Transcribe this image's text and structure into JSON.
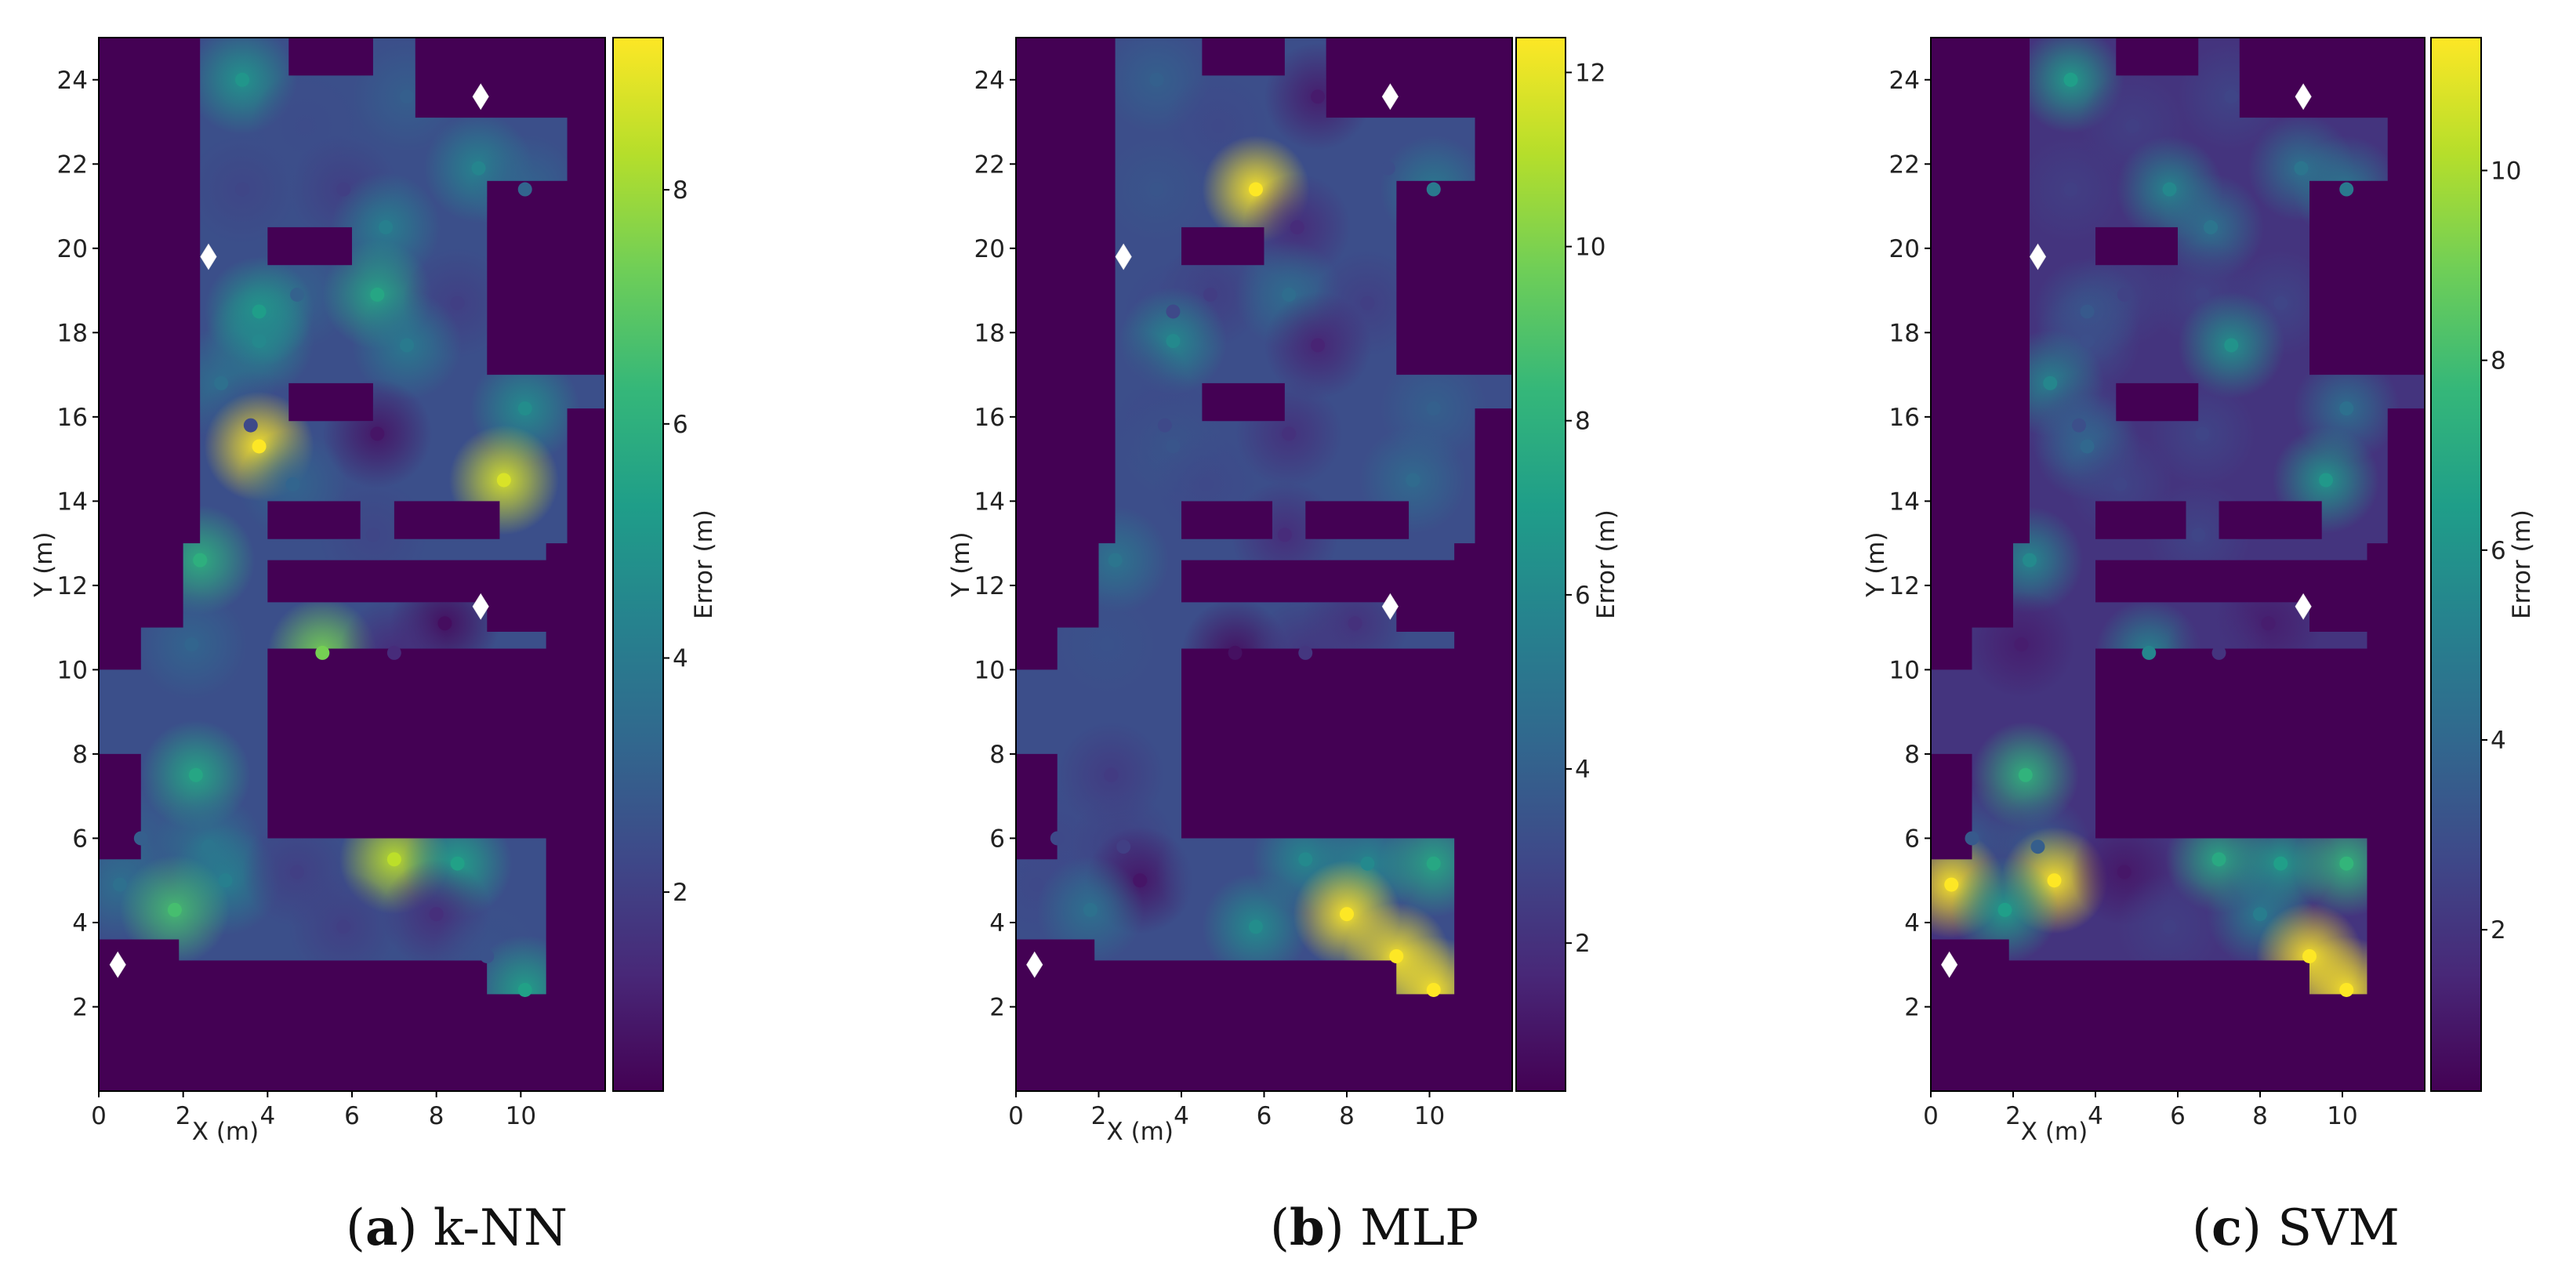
{
  "colors": {
    "wall": "#440154",
    "viridis": [
      "#440154",
      "#482878",
      "#3e4989",
      "#31688e",
      "#26828e",
      "#1f9e89",
      "#35b779",
      "#6ece58",
      "#b5de2b",
      "#fde725"
    ],
    "marker": "#ffffff"
  },
  "chart_data": [
    {
      "type": "heatmap",
      "name": "knn",
      "caption_letter": "(a)",
      "caption_text": " k-NN",
      "xlabel": "X (m)",
      "ylabel": "Y (m)",
      "colorbar_label": "Error   (m)",
      "xlim": [
        0,
        12
      ],
      "ylim": [
        0,
        25
      ],
      "xticks": [
        0,
        2,
        4,
        6,
        8,
        10
      ],
      "yticks": [
        2,
        4,
        6,
        8,
        10,
        12,
        14,
        16,
        18,
        20,
        22,
        24
      ],
      "clim": [
        0.3,
        9.3
      ],
      "cticks": [
        2,
        4,
        6,
        8
      ],
      "background_error": 2.5,
      "access_points": [
        [
          0.45,
          3.0
        ],
        [
          2.6,
          19.8
        ],
        [
          9.05,
          23.6
        ],
        [
          9.05,
          11.5
        ]
      ],
      "points": [
        [
          3.4,
          24.0,
          5.0
        ],
        [
          4.9,
          22.9,
          2.4
        ],
        [
          7.3,
          23.6,
          3.0
        ],
        [
          9.0,
          21.9,
          4.4
        ],
        [
          10.1,
          21.4,
          3.2
        ],
        [
          3.4,
          21.4,
          2.2
        ],
        [
          5.8,
          21.4,
          2.0
        ],
        [
          6.8,
          20.5,
          4.2
        ],
        [
          4.7,
          18.9,
          3.1
        ],
        [
          3.8,
          18.5,
          5.3
        ],
        [
          6.6,
          18.9,
          5.6
        ],
        [
          8.5,
          18.7,
          2.0
        ],
        [
          3.8,
          17.8,
          4.5
        ],
        [
          7.3,
          17.7,
          4.0
        ],
        [
          2.9,
          16.8,
          3.6
        ],
        [
          3.6,
          15.8,
          2.3
        ],
        [
          3.8,
          15.3,
          9.3
        ],
        [
          6.6,
          15.6,
          0.8
        ],
        [
          4.6,
          14.4,
          3.2
        ],
        [
          10.1,
          16.2,
          4.7
        ],
        [
          9.6,
          14.5,
          8.8
        ],
        [
          6.5,
          13.2,
          2.2
        ],
        [
          2.4,
          12.6,
          6.0
        ],
        [
          8.2,
          11.1,
          0.6
        ],
        [
          2.2,
          10.6,
          3.2
        ],
        [
          5.3,
          10.4,
          7.4
        ],
        [
          7.0,
          10.4,
          1.4
        ],
        [
          1.0,
          6.0,
          3.0
        ],
        [
          0.5,
          4.9,
          3.6
        ],
        [
          2.3,
          7.5,
          5.6
        ],
        [
          2.6,
          5.8,
          3.8
        ],
        [
          3.0,
          5.0,
          4.2
        ],
        [
          1.8,
          4.3,
          6.6
        ],
        [
          4.7,
          5.2,
          2.0
        ],
        [
          7.0,
          5.5,
          8.4
        ],
        [
          8.5,
          5.4,
          5.4
        ],
        [
          5.8,
          3.9,
          2.0
        ],
        [
          8.0,
          4.2,
          1.5
        ],
        [
          9.2,
          3.2,
          2.6
        ],
        [
          10.1,
          2.4,
          5.4
        ]
      ]
    },
    {
      "type": "heatmap",
      "name": "mlp",
      "caption_letter": "(b)",
      "caption_text": " MLP",
      "xlabel": "X (m)",
      "ylabel": "Y (m)",
      "colorbar_label": "Error   (m)",
      "xlim": [
        0,
        12
      ],
      "ylim": [
        0,
        25
      ],
      "xticks": [
        0,
        2,
        4,
        6,
        8,
        10
      ],
      "yticks": [
        2,
        4,
        6,
        8,
        10,
        12,
        14,
        16,
        18,
        20,
        22,
        24
      ],
      "clim": [
        0.3,
        12.4
      ],
      "cticks": [
        2,
        4,
        6,
        8,
        10,
        12
      ],
      "background_error": 3.2,
      "access_points": [
        [
          0.45,
          3.0
        ],
        [
          2.6,
          19.8
        ],
        [
          9.05,
          23.6
        ],
        [
          9.05,
          11.5
        ]
      ],
      "points": [
        [
          3.4,
          24.0,
          4.0
        ],
        [
          4.9,
          22.9,
          3.0
        ],
        [
          7.3,
          23.6,
          1.2
        ],
        [
          9.0,
          21.9,
          3.2
        ],
        [
          10.1,
          21.4,
          5.2
        ],
        [
          3.4,
          21.4,
          3.5
        ],
        [
          5.8,
          21.4,
          12.4
        ],
        [
          6.8,
          20.5,
          1.8
        ],
        [
          4.7,
          18.9,
          2.5
        ],
        [
          3.8,
          18.5,
          3.0
        ],
        [
          6.6,
          18.9,
          4.6
        ],
        [
          8.5,
          18.7,
          2.6
        ],
        [
          3.8,
          17.8,
          6.0
        ],
        [
          7.3,
          17.7,
          1.5
        ],
        [
          2.9,
          16.8,
          3.2
        ],
        [
          3.6,
          15.8,
          3.0
        ],
        [
          3.8,
          15.3,
          3.5
        ],
        [
          6.6,
          15.6,
          2.0
        ],
        [
          4.6,
          14.4,
          3.0
        ],
        [
          10.1,
          16.2,
          4.0
        ],
        [
          9.6,
          14.5,
          4.5
        ],
        [
          6.5,
          13.2,
          1.8
        ],
        [
          2.4,
          12.6,
          5.0
        ],
        [
          8.2,
          11.1,
          2.0
        ],
        [
          2.2,
          10.6,
          3.4
        ],
        [
          5.3,
          10.4,
          0.8
        ],
        [
          7.0,
          10.4,
          2.2
        ],
        [
          1.0,
          6.0,
          3.0
        ],
        [
          0.5,
          4.9,
          3.0
        ],
        [
          2.3,
          7.5,
          2.4
        ],
        [
          2.6,
          5.8,
          2.6
        ],
        [
          3.0,
          5.0,
          1.0
        ],
        [
          1.8,
          4.3,
          4.8
        ],
        [
          4.7,
          5.2,
          3.2
        ],
        [
          7.0,
          5.5,
          6.0
        ],
        [
          8.5,
          5.4,
          6.0
        ],
        [
          5.8,
          3.9,
          6.2
        ],
        [
          8.0,
          4.2,
          12.4
        ],
        [
          9.2,
          3.2,
          12.4
        ],
        [
          10.1,
          2.4,
          12.4
        ],
        [
          10.1,
          5.4,
          7.5
        ]
      ]
    },
    {
      "type": "heatmap",
      "name": "svm",
      "caption_letter": "(c)",
      "caption_text": " SVM",
      "xlabel": "X (m)",
      "ylabel": "Y (m)",
      "colorbar_label": "Error   (m)",
      "xlim": [
        0,
        12
      ],
      "ylim": [
        0,
        25
      ],
      "xticks": [
        0,
        2,
        4,
        6,
        8,
        10
      ],
      "yticks": [
        2,
        4,
        6,
        8,
        10,
        12,
        14,
        16,
        18,
        20,
        22,
        24
      ],
      "clim": [
        0.3,
        11.4
      ],
      "cticks": [
        2,
        4,
        6,
        8,
        10
      ],
      "background_error": 2.0,
      "access_points": [
        [
          0.45,
          3.0
        ],
        [
          2.6,
          19.8
        ],
        [
          9.05,
          23.6
        ],
        [
          9.05,
          11.5
        ]
      ],
      "points": [
        [
          3.4,
          24.0,
          6.5
        ],
        [
          4.9,
          22.9,
          2.4
        ],
        [
          7.3,
          23.6,
          2.6
        ],
        [
          9.0,
          21.9,
          4.6
        ],
        [
          10.1,
          21.4,
          4.8
        ],
        [
          3.4,
          21.4,
          2.4
        ],
        [
          5.8,
          21.4,
          5.5
        ],
        [
          6.8,
          20.5,
          4.6
        ],
        [
          4.7,
          18.9,
          2.5
        ],
        [
          3.8,
          18.5,
          3.4
        ],
        [
          6.6,
          18.9,
          2.5
        ],
        [
          8.5,
          18.7,
          2.6
        ],
        [
          3.8,
          17.8,
          3.0
        ],
        [
          7.3,
          17.7,
          6.0
        ],
        [
          2.9,
          16.8,
          5.4
        ],
        [
          3.6,
          15.8,
          3.0
        ],
        [
          3.8,
          15.3,
          4.0
        ],
        [
          6.6,
          15.6,
          2.6
        ],
        [
          4.6,
          14.4,
          2.6
        ],
        [
          10.1,
          16.2,
          4.4
        ],
        [
          9.6,
          14.5,
          6.2
        ],
        [
          6.5,
          13.2,
          2.6
        ],
        [
          2.4,
          12.6,
          5.6
        ],
        [
          8.2,
          11.1,
          1.2
        ],
        [
          2.2,
          10.6,
          1.2
        ],
        [
          5.3,
          10.4,
          5.4
        ],
        [
          7.0,
          10.4,
          2.0
        ],
        [
          1.0,
          6.0,
          3.4
        ],
        [
          0.5,
          4.9,
          11.4
        ],
        [
          2.3,
          7.5,
          7.5
        ],
        [
          2.6,
          5.8,
          3.6
        ],
        [
          3.0,
          5.0,
          11.4
        ],
        [
          1.8,
          4.3,
          6.5
        ],
        [
          4.7,
          5.2,
          1.0
        ],
        [
          7.0,
          5.5,
          7.0
        ],
        [
          8.5,
          5.4,
          6.5
        ],
        [
          5.8,
          3.9,
          2.4
        ],
        [
          8.0,
          4.2,
          5.0
        ],
        [
          9.2,
          3.2,
          11.4
        ],
        [
          10.1,
          2.4,
          11.4
        ],
        [
          10.1,
          5.4,
          7.6
        ]
      ]
    }
  ]
}
